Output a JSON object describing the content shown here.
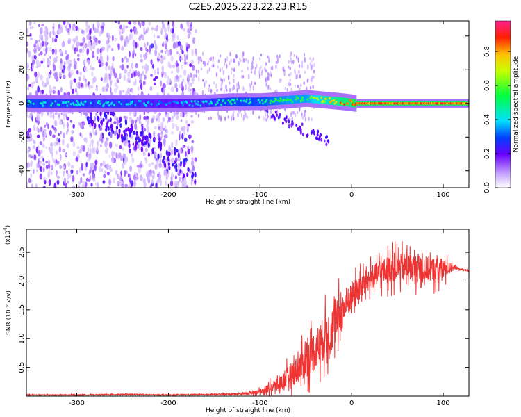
{
  "title": "C2E5.2025.223.22.23.R15",
  "chart_data": [
    {
      "type": "heatmap",
      "xlabel": "Height of straight line (km)",
      "ylabel": "Frequency (Hz)",
      "xlim": [
        -355,
        128
      ],
      "ylim": [
        -50,
        49
      ],
      "x_ticks": [
        -300,
        -200,
        -100,
        0,
        100
      ],
      "y_ticks": [
        -40,
        -20,
        0,
        20,
        40
      ],
      "colorbar": {
        "label": "Normalized spectral amplitude",
        "range": [
          0,
          0.98
        ],
        "ticks": [
          "0.0",
          "0.2",
          "0.4",
          "0.6",
          "0.8"
        ]
      },
      "ridge": {
        "x": [
          -355,
          -300,
          -250,
          -200,
          -170,
          -130,
          -100,
          -70,
          -50,
          -30,
          -10,
          5,
          40,
          80,
          128
        ],
        "center_hz": [
          0,
          0,
          0,
          0,
          0,
          1,
          1,
          2,
          3,
          2,
          1,
          0,
          0,
          0,
          0
        ],
        "amplitude": [
          0.5,
          0.45,
          0.45,
          0.35,
          0.4,
          0.5,
          0.5,
          0.6,
          0.6,
          0.75,
          0.85,
          0.9,
          0.9,
          0.9,
          0.9
        ]
      },
      "scatter_region": {
        "x_range": [
          -355,
          -170
        ],
        "freq_range": [
          -50,
          49
        ]
      }
    },
    {
      "type": "line",
      "xlabel": "Height of straight line (km)",
      "ylabel": "SNR (10 * v/v)",
      "y_multiplier": "(x10",
      "y_multiplier_exp": "4",
      "y_multiplier_close": ")",
      "xlim": [
        -355,
        128
      ],
      "ylim": [
        0,
        2.9
      ],
      "x_ticks": [
        -300,
        -200,
        -100,
        0,
        100
      ],
      "y_ticks": [
        0.5,
        1.0,
        1.5,
        2.0,
        2.5
      ],
      "color": "#ee3333",
      "series": [
        {
          "x": [
            -355,
            -300,
            -250,
            -200,
            -150,
            -120,
            -100,
            -80,
            -60,
            -40,
            -20,
            0,
            20,
            40,
            60,
            80,
            100,
            110,
            120,
            128
          ],
          "y": [
            0.02,
            0.02,
            0.03,
            0.02,
            0.03,
            0.04,
            0.08,
            0.2,
            0.45,
            0.8,
            1.2,
            1.75,
            2.05,
            2.2,
            2.25,
            2.2,
            2.2,
            2.25,
            2.2,
            2.18
          ],
          "noise": [
            0.01,
            0.01,
            0.01,
            0.01,
            0.01,
            0.02,
            0.05,
            0.15,
            0.3,
            0.45,
            0.5,
            0.3,
            0.25,
            0.3,
            0.3,
            0.3,
            0.25,
            0.05,
            0.02,
            0.01
          ]
        }
      ]
    }
  ]
}
